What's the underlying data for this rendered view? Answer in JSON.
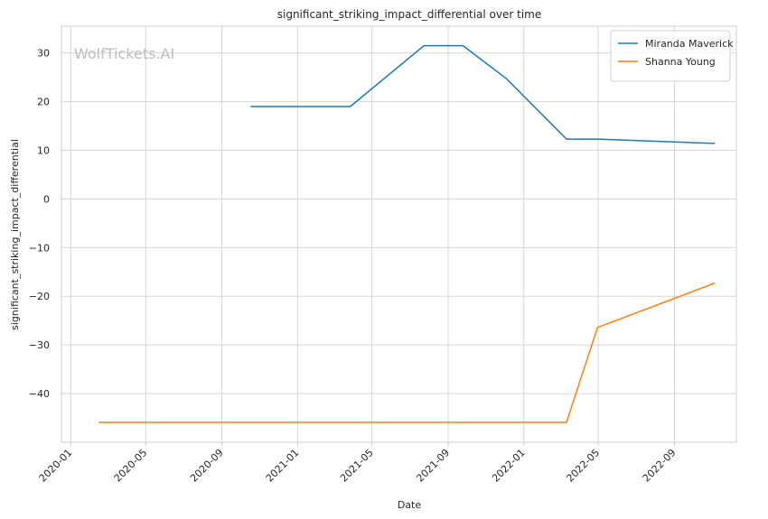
{
  "chart_data": {
    "type": "line",
    "title": "significant_striking_impact_differential over time",
    "xlabel": "Date",
    "ylabel": "significant_striking_impact_differential",
    "watermark": "WolfTickets.AI",
    "x_ticks": [
      "2020-01",
      "2020-05",
      "2020-09",
      "2021-01",
      "2021-05",
      "2021-09",
      "2022-01",
      "2022-05",
      "2022-09"
    ],
    "y_ticks": [
      30,
      20,
      10,
      0,
      -10,
      -20,
      -30,
      -40
    ],
    "xlim": [
      "2019-12-17",
      "2022-12-10"
    ],
    "ylim": [
      -50,
      35.5
    ],
    "grid": true,
    "legend_position": "top-right",
    "series": [
      {
        "name": "Miranda Maverick",
        "color": "#1f77b4",
        "points": [
          {
            "x": "2020-10-17",
            "y": 19.0
          },
          {
            "x": "2021-03-27",
            "y": 19.0
          },
          {
            "x": "2021-07-24",
            "y": 31.5
          },
          {
            "x": "2021-09-25",
            "y": 31.5
          },
          {
            "x": "2021-12-04",
            "y": 24.7
          },
          {
            "x": "2022-03-11",
            "y": 12.3
          },
          {
            "x": "2022-04-30",
            "y": 12.3
          },
          {
            "x": "2022-11-05",
            "y": 11.4
          }
        ]
      },
      {
        "name": "Shanna Young",
        "color": "#ff7f0e",
        "points": [
          {
            "x": "2020-02-15",
            "y": -45.9
          },
          {
            "x": "2022-03-11",
            "y": -45.9
          },
          {
            "x": "2022-04-30",
            "y": -26.4
          },
          {
            "x": "2022-11-05",
            "y": -17.3
          }
        ]
      }
    ]
  }
}
